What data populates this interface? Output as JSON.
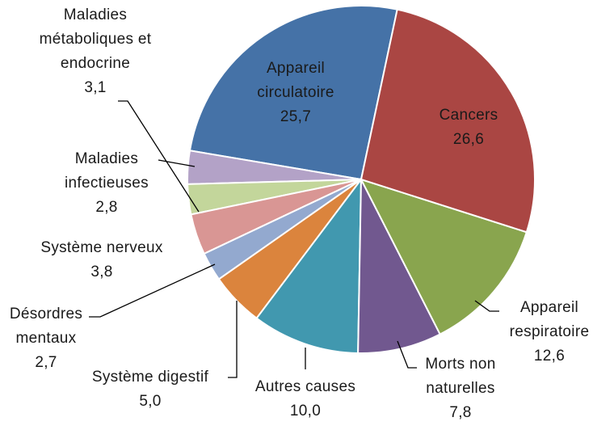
{
  "chart_data": {
    "type": "pie",
    "categories": [
      "Cancers",
      "Appareil respiratoire",
      "Morts non naturelles",
      "Autres causes",
      "Système digestif",
      "Désordres mentaux",
      "Système nerveux",
      "Maladies infectieuses",
      "Maladies métaboliques et endocrine",
      "Appareil circulatoire"
    ],
    "values": [
      26.6,
      12.6,
      7.8,
      10.0,
      5.0,
      2.7,
      3.8,
      2.8,
      3.1,
      25.7
    ],
    "value_labels": [
      "26,6",
      "12,6",
      "7,8",
      "10,0",
      "5,0",
      "2,7",
      "3,8",
      "2,8",
      "3,1",
      "25,7"
    ],
    "colors": [
      "#aa4643",
      "#89a54e",
      "#71588f",
      "#4198af",
      "#db843d",
      "#93a9cf",
      "#d99694",
      "#c3d69b",
      "#b3a2c7",
      "#4572a7"
    ]
  }
}
